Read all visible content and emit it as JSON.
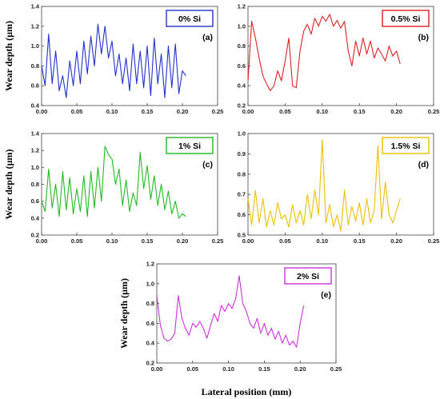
{
  "figure": {
    "x_axis_label": "Lateral position (mm)"
  },
  "chart_data": [
    {
      "type": "line",
      "tag": "(a)",
      "ylabel": "Wear depth (µm)",
      "xlabel": "",
      "xlim": [
        0,
        0.25
      ],
      "ylim": [
        0.4,
        1.4
      ],
      "xticks": [
        "0.00",
        "0.05",
        "0.10",
        "0.15",
        "0.20",
        "0.25"
      ],
      "yticks": [
        "0.4",
        "0.6",
        "0.8",
        "1.0",
        "1.2",
        "1.4"
      ],
      "legend": {
        "label": "0% Si",
        "position": "top-right"
      },
      "series": [
        {
          "color": "#2233cc",
          "x": [
            0.0,
            0.005,
            0.01,
            0.015,
            0.02,
            0.025,
            0.03,
            0.035,
            0.04,
            0.045,
            0.05,
            0.055,
            0.06,
            0.065,
            0.07,
            0.075,
            0.08,
            0.085,
            0.09,
            0.095,
            0.1,
            0.105,
            0.11,
            0.115,
            0.12,
            0.125,
            0.13,
            0.135,
            0.14,
            0.145,
            0.15,
            0.155,
            0.16,
            0.165,
            0.17,
            0.175,
            0.18,
            0.185,
            0.19,
            0.195,
            0.2,
            0.205
          ],
          "y": [
            0.8,
            0.6,
            1.12,
            0.62,
            0.95,
            0.55,
            0.7,
            0.48,
            0.85,
            0.6,
            0.95,
            0.62,
            1.05,
            0.72,
            1.1,
            0.8,
            1.22,
            0.92,
            1.2,
            0.88,
            1.05,
            0.7,
            0.92,
            0.62,
            0.88,
            0.55,
            1.02,
            0.62,
            0.95,
            0.58,
            1.0,
            0.5,
            1.08,
            0.62,
            0.92,
            0.48,
            1.0,
            0.58,
            1.02,
            0.52,
            0.75,
            0.7
          ]
        }
      ]
    },
    {
      "type": "line",
      "tag": "(b)",
      "ylabel": "",
      "xlabel": "",
      "xlim": [
        0,
        0.25
      ],
      "ylim": [
        0.2,
        1.2
      ],
      "xticks": [
        "0.00",
        "0.05",
        "0.10",
        "0.15",
        "0.20",
        "0.25"
      ],
      "yticks": [
        "0.2",
        "0.4",
        "0.6",
        "0.8",
        "1.0",
        "1.2"
      ],
      "legend": {
        "label": "0.5% Si",
        "position": "top-right"
      },
      "series": [
        {
          "color": "#dd2222",
          "x": [
            0.0,
            0.005,
            0.01,
            0.015,
            0.02,
            0.025,
            0.03,
            0.035,
            0.04,
            0.045,
            0.05,
            0.055,
            0.06,
            0.065,
            0.07,
            0.075,
            0.08,
            0.085,
            0.09,
            0.095,
            0.1,
            0.105,
            0.11,
            0.115,
            0.12,
            0.125,
            0.13,
            0.135,
            0.14,
            0.145,
            0.15,
            0.155,
            0.16,
            0.165,
            0.17,
            0.175,
            0.18,
            0.185,
            0.19,
            0.195,
            0.2,
            0.205
          ],
          "y": [
            0.45,
            1.05,
            0.88,
            0.68,
            0.5,
            0.42,
            0.35,
            0.4,
            0.55,
            0.45,
            0.65,
            0.88,
            0.4,
            0.38,
            0.75,
            0.95,
            1.02,
            0.92,
            1.08,
            1.0,
            1.1,
            1.05,
            1.12,
            1.0,
            1.06,
            0.98,
            1.05,
            0.75,
            0.6,
            0.85,
            0.7,
            0.88,
            0.72,
            0.85,
            0.68,
            0.78,
            0.72,
            0.65,
            0.8,
            0.7,
            0.75,
            0.62
          ]
        }
      ]
    },
    {
      "type": "line",
      "tag": "(c)",
      "ylabel": "Wear depth (µm)",
      "xlabel": "",
      "xlim": [
        0,
        0.25
      ],
      "ylim": [
        0.2,
        1.4
      ],
      "xticks": [
        "0.00",
        "0.05",
        "0.10",
        "0.15",
        "0.20",
        "0.25"
      ],
      "yticks": [
        "0.2",
        "0.4",
        "0.6",
        "0.8",
        "1.0",
        "1.2",
        "1.4"
      ],
      "legend": {
        "label": "1% Si",
        "position": "top-right"
      },
      "series": [
        {
          "color": "#22bb22",
          "x": [
            0.0,
            0.005,
            0.01,
            0.015,
            0.02,
            0.025,
            0.03,
            0.035,
            0.04,
            0.045,
            0.05,
            0.055,
            0.06,
            0.065,
            0.07,
            0.075,
            0.08,
            0.085,
            0.09,
            0.095,
            0.1,
            0.105,
            0.11,
            0.115,
            0.12,
            0.125,
            0.13,
            0.135,
            0.14,
            0.145,
            0.15,
            0.155,
            0.16,
            0.165,
            0.17,
            0.175,
            0.18,
            0.185,
            0.19,
            0.195,
            0.2,
            0.205
          ],
          "y": [
            0.6,
            0.48,
            0.98,
            0.52,
            0.8,
            0.42,
            0.95,
            0.5,
            0.88,
            0.45,
            0.75,
            0.48,
            0.9,
            0.42,
            0.95,
            0.52,
            1.0,
            0.6,
            1.25,
            1.15,
            1.1,
            0.8,
            0.98,
            0.55,
            0.85,
            0.48,
            0.7,
            0.55,
            1.18,
            0.75,
            1.02,
            0.62,
            0.9,
            0.55,
            0.8,
            0.5,
            0.72,
            0.45,
            0.6,
            0.4,
            0.45,
            0.42
          ]
        }
      ]
    },
    {
      "type": "line",
      "tag": "(d)",
      "ylabel": "",
      "xlabel": "",
      "xlim": [
        0,
        0.25
      ],
      "ylim": [
        0.5,
        1.0
      ],
      "xticks": [
        "0.00",
        "0.05",
        "0.10",
        "0.15",
        "0.20",
        "0.25"
      ],
      "yticks": [
        "0.5",
        "0.6",
        "0.7",
        "0.8",
        "0.9",
        "1.0"
      ],
      "legend": {
        "label": "1.5% Si",
        "position": "top-right"
      },
      "series": [
        {
          "color": "#f0c000",
          "x": [
            0.0,
            0.005,
            0.01,
            0.015,
            0.02,
            0.025,
            0.03,
            0.035,
            0.04,
            0.045,
            0.05,
            0.055,
            0.06,
            0.065,
            0.07,
            0.075,
            0.08,
            0.085,
            0.09,
            0.095,
            0.1,
            0.105,
            0.11,
            0.115,
            0.12,
            0.125,
            0.13,
            0.135,
            0.14,
            0.145,
            0.15,
            0.155,
            0.16,
            0.165,
            0.17,
            0.175,
            0.18,
            0.185,
            0.19,
            0.195,
            0.2,
            0.205
          ],
          "y": [
            0.68,
            0.55,
            0.72,
            0.56,
            0.68,
            0.54,
            0.62,
            0.55,
            0.66,
            0.58,
            0.6,
            0.54,
            0.65,
            0.56,
            0.62,
            0.55,
            0.7,
            0.58,
            0.72,
            0.6,
            0.97,
            0.56,
            0.65,
            0.54,
            0.6,
            0.52,
            0.72,
            0.55,
            0.64,
            0.57,
            0.66,
            0.55,
            0.68,
            0.56,
            0.62,
            0.94,
            0.58,
            0.76,
            0.6,
            0.56,
            0.62,
            0.68
          ]
        }
      ]
    },
    {
      "type": "line",
      "tag": "(e)",
      "ylabel": "Wear depth (µm)",
      "xlabel": "Lateral position (mm)",
      "xlim": [
        0,
        0.25
      ],
      "ylim": [
        0.2,
        1.2
      ],
      "xticks": [
        "0.00",
        "0.05",
        "0.10",
        "0.15",
        "0.20",
        "0.25"
      ],
      "yticks": [
        "0.2",
        "0.4",
        "0.6",
        "0.8",
        "1.0",
        "1.2"
      ],
      "legend": {
        "label": "2% Si",
        "position": "top-right"
      },
      "series": [
        {
          "color": "#cc33dd",
          "x": [
            0.0,
            0.005,
            0.01,
            0.015,
            0.02,
            0.025,
            0.03,
            0.035,
            0.04,
            0.045,
            0.05,
            0.055,
            0.06,
            0.065,
            0.07,
            0.075,
            0.08,
            0.085,
            0.09,
            0.095,
            0.1,
            0.105,
            0.11,
            0.115,
            0.12,
            0.125,
            0.13,
            0.135,
            0.14,
            0.145,
            0.15,
            0.155,
            0.16,
            0.165,
            0.17,
            0.175,
            0.18,
            0.185,
            0.19,
            0.195,
            0.2,
            0.205
          ],
          "y": [
            0.88,
            0.58,
            0.45,
            0.42,
            0.44,
            0.5,
            0.88,
            0.65,
            0.55,
            0.48,
            0.6,
            0.56,
            0.62,
            0.55,
            0.45,
            0.58,
            0.7,
            0.62,
            0.78,
            0.72,
            0.8,
            0.75,
            0.85,
            1.08,
            0.8,
            0.72,
            0.6,
            0.55,
            0.65,
            0.5,
            0.6,
            0.48,
            0.55,
            0.44,
            0.52,
            0.4,
            0.48,
            0.38,
            0.42,
            0.36,
            0.6,
            0.78
          ]
        }
      ]
    }
  ]
}
